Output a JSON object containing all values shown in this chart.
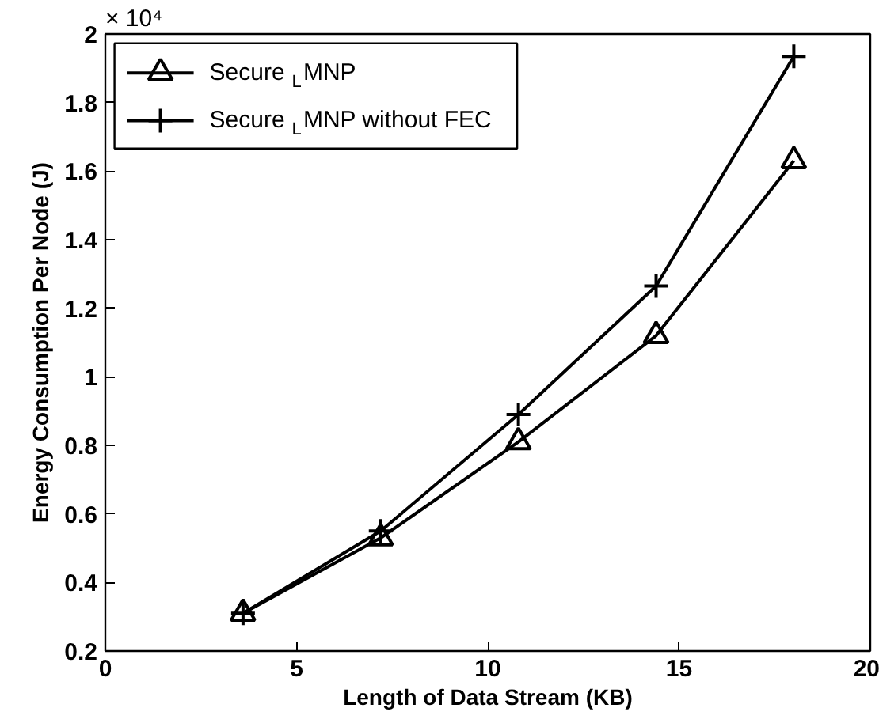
{
  "chart_data": {
    "type": "line",
    "xlabel": "Length of Data Stream (KB)",
    "ylabel": "Energy Consumption Per Node (J)",
    "annotations": [
      "× 10⁴"
    ],
    "x": [
      3.6,
      7.2,
      10.8,
      14.4,
      18
    ],
    "xlim": [
      0,
      20
    ],
    "xticks": [
      0,
      5,
      10,
      15,
      20
    ],
    "ylim": [
      0.2,
      2
    ],
    "yticks": [
      0.2,
      0.4,
      0.6,
      0.8,
      1,
      1.2,
      1.4,
      1.6,
      1.8,
      2
    ],
    "grid": false,
    "legend": "top left",
    "line_style": "solid",
    "series": [
      {
        "name": "Secure$_{L}$MNP",
        "color": "#000000",
        "marker": "triangle",
        "values": [
          0.31,
          0.53,
          0.81,
          1.12,
          1.63
        ]
      },
      {
        "name": "Secure$_{L}$MNP without FEC",
        "color": "#000000",
        "marker": "cross",
        "values": [
          0.31,
          0.55,
          0.89,
          1.265,
          1.935
        ]
      }
    ]
  }
}
